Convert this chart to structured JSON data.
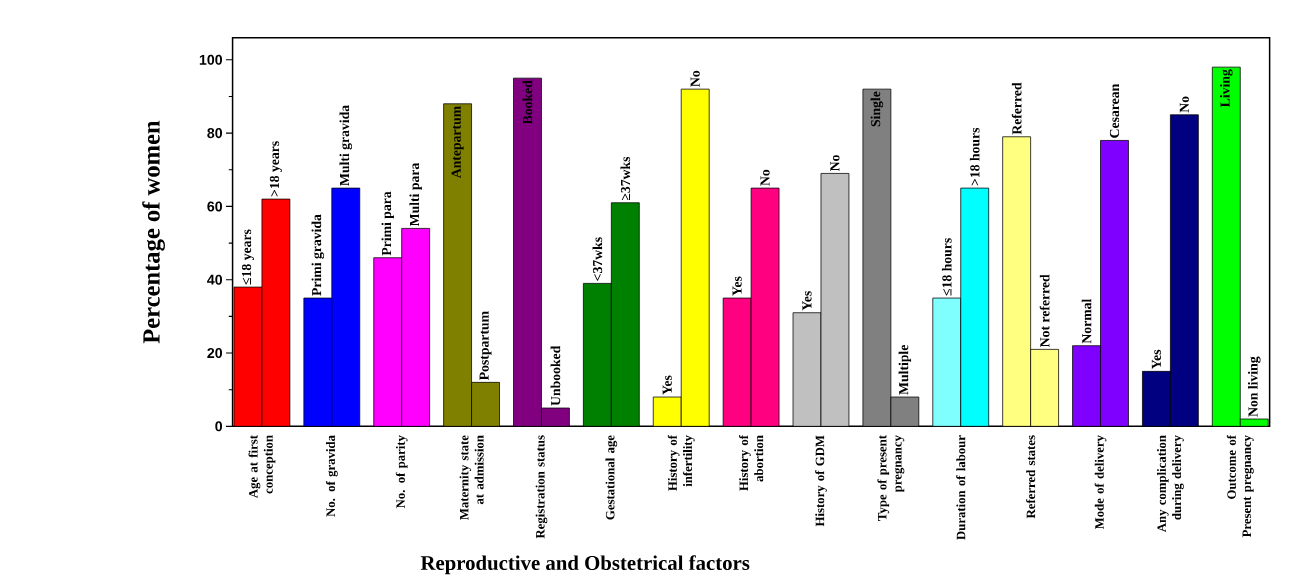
{
  "chart_data": {
    "type": "bar",
    "xlabel": "Reproductive and Obstetrical factors",
    "ylabel": "Percentage of women",
    "categories": [
      "Age at first conception",
      "No. of gravida",
      "No. of parity",
      "Maternity state at admission",
      "Registration status",
      "Gestational age",
      "History of infertility",
      "History of abortion",
      "History of GDM",
      "Type of present pregnancy",
      "Duration of labour",
      "Referred states",
      "Mode of delivery",
      "Any complication during delivery",
      "Outcome of Present pregnancy"
    ],
    "series": [
      {
        "values": [
          38,
          35,
          46,
          88,
          95,
          39,
          8,
          35,
          31,
          92,
          35,
          79,
          22,
          15,
          98
        ],
        "colors": [
          "#ff0000",
          "#0000ff",
          "#ff00ff",
          "#808000",
          "#800080",
          "#008000",
          "#ffff00",
          "#ff0080",
          "#c0c0c0",
          "#808080",
          "#80ffff",
          "#ffff80",
          "#8000ff",
          "#000080",
          "#00ff00"
        ],
        "value_labels": [
          "≤18 years",
          "Primi gravida",
          "Primi para",
          "Antepartum",
          "Booked",
          "<37wks",
          "Yes",
          "Yes",
          "Yes",
          "Single",
          "≤18 hours",
          "Referred",
          "Normal",
          "Yes",
          "Living"
        ]
      },
      {
        "values": [
          62,
          65,
          54,
          12,
          5,
          61,
          92,
          65,
          69,
          8,
          65,
          21,
          78,
          85,
          2
        ],
        "colors": [
          "#ff0000",
          "#0000ff",
          "#ff00ff",
          "#808000",
          "#800080",
          "#008000",
          "#ffff00",
          "#ff0080",
          "#c0c0c0",
          "#808080",
          "#00ffff",
          "#ffff80",
          "#8000ff",
          "#000080",
          "#00ff00"
        ],
        "value_labels": [
          ">18 years",
          "Multi gravida",
          "Multi para",
          "Postpartum",
          "Unbooked",
          "≥37wks",
          "No",
          "No",
          "No",
          "Multiple",
          ">18 hours",
          "Not referred",
          "Cesarean",
          "No",
          "Non living"
        ]
      }
    ],
    "ylim": [
      0,
      106
    ],
    "yticks": [
      0,
      20,
      40,
      60,
      80,
      100
    ]
  }
}
